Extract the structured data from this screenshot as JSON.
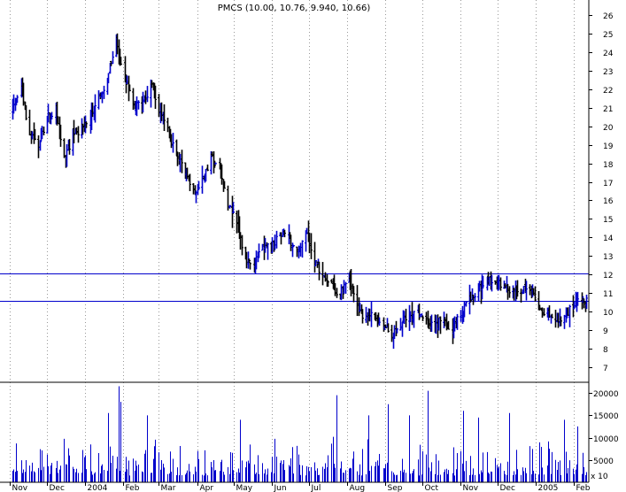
{
  "chart_data": [
    {
      "type": "ohlc",
      "title": "PMCS (10.00, 10.76, 9.940, 10.66)",
      "ylim": [
        6.2,
        26.8
      ],
      "yticks": [
        7,
        8,
        9,
        10,
        11,
        12,
        13,
        14,
        15,
        16,
        17,
        18,
        19,
        20,
        21,
        22,
        23,
        24,
        25,
        26
      ],
      "grid": "vertical dotted at month starts",
      "horizontal_lines": [
        12.05,
        10.58
      ],
      "colors": {
        "up": "#0000cc",
        "down": "#000000",
        "line": "#0000cc",
        "grid": "#999999"
      },
      "months": [
        "Nov",
        "Dec",
        "2004",
        "Feb",
        "Mar",
        "Apr",
        "May",
        "Jun",
        "Jul",
        "Aug",
        "Sep",
        "Oct",
        "Nov",
        "Dec",
        "2005",
        "Feb"
      ],
      "keypoints": [
        [
          "2003-11-03",
          20.8
        ],
        [
          "2003-11-10",
          22.2
        ],
        [
          "2003-11-17",
          19.5
        ],
        [
          "2003-11-24",
          19.0
        ],
        [
          "2003-12-01",
          20.5
        ],
        [
          "2003-12-08",
          20.8
        ],
        [
          "2003-12-15",
          18.2
        ],
        [
          "2003-12-22",
          19.6
        ],
        [
          "2003-12-29",
          19.9
        ],
        [
          "2004-01-05",
          20.5
        ],
        [
          "2004-01-12",
          21.6
        ],
        [
          "2004-01-19",
          22.6
        ],
        [
          "2004-01-26",
          24.6
        ],
        [
          "2004-02-02",
          22.6
        ],
        [
          "2004-02-09",
          21.2
        ],
        [
          "2004-02-16",
          21.0
        ],
        [
          "2004-02-23",
          22.4
        ],
        [
          "2004-03-01",
          21.0
        ],
        [
          "2004-03-08",
          19.8
        ],
        [
          "2004-03-15",
          18.2
        ],
        [
          "2004-03-22",
          17.7
        ],
        [
          "2004-03-29",
          16.4
        ],
        [
          "2004-04-05",
          17.2
        ],
        [
          "2004-04-12",
          18.3
        ],
        [
          "2004-04-19",
          17.6
        ],
        [
          "2004-04-26",
          15.8
        ],
        [
          "2004-05-03",
          14.7
        ],
        [
          "2004-05-10",
          12.9
        ],
        [
          "2004-05-17",
          12.4
        ],
        [
          "2004-05-24",
          13.6
        ],
        [
          "2004-05-31",
          13.4
        ],
        [
          "2004-06-07",
          14.2
        ],
        [
          "2004-06-14",
          14.0
        ],
        [
          "2004-06-21",
          13.2
        ],
        [
          "2004-06-28",
          14.2
        ],
        [
          "2004-07-05",
          12.7
        ],
        [
          "2004-07-12",
          12.1
        ],
        [
          "2004-07-19",
          11.4
        ],
        [
          "2004-07-26",
          10.9
        ],
        [
          "2004-08-02",
          11.8
        ],
        [
          "2004-08-09",
          10.2
        ],
        [
          "2004-08-16",
          9.6
        ],
        [
          "2004-08-23",
          9.9
        ],
        [
          "2004-08-30",
          9.3
        ],
        [
          "2004-09-06",
          8.8
        ],
        [
          "2004-09-13",
          9.3
        ],
        [
          "2004-09-20",
          9.8
        ],
        [
          "2004-09-27",
          9.9
        ],
        [
          "2004-10-04",
          9.5
        ],
        [
          "2004-10-11",
          9.2
        ],
        [
          "2004-10-18",
          9.7
        ],
        [
          "2004-10-25",
          9.0
        ],
        [
          "2004-11-01",
          9.9
        ],
        [
          "2004-11-08",
          10.6
        ],
        [
          "2004-11-15",
          11.2
        ],
        [
          "2004-11-22",
          11.8
        ],
        [
          "2004-11-29",
          11.4
        ],
        [
          "2004-12-06",
          11.6
        ],
        [
          "2004-12-13",
          11.0
        ],
        [
          "2004-12-20",
          11.1
        ],
        [
          "2004-12-27",
          11.2
        ],
        [
          "2005-01-03",
          10.2
        ],
        [
          "2005-01-10",
          9.9
        ],
        [
          "2005-01-17",
          9.3
        ],
        [
          "2005-01-24",
          9.8
        ],
        [
          "2005-01-31",
          10.4
        ],
        [
          "2005-02-07",
          10.5
        ]
      ]
    },
    {
      "type": "bar",
      "title": "",
      "ylim": [
        0,
        22000
      ],
      "yticks": [
        5000,
        10000,
        15000,
        20000
      ],
      "ytick_labels": [
        "5000",
        "10000",
        "15000",
        "20000"
      ],
      "unit_label": "x 10",
      "spikes": [
        [
          "2004-01-28",
          21500
        ],
        [
          "2004-01-30",
          18000
        ],
        [
          "2004-01-20",
          15500
        ],
        [
          "2004-02-20",
          15000
        ],
        [
          "2004-05-06",
          14000
        ],
        [
          "2004-07-23",
          19500
        ],
        [
          "2004-08-18",
          15000
        ],
        [
          "2004-09-03",
          17500
        ],
        [
          "2004-09-20",
          15000
        ],
        [
          "2004-10-05",
          20500
        ],
        [
          "2004-11-03",
          16000
        ],
        [
          "2004-11-15",
          14500
        ],
        [
          "2004-12-10",
          15500
        ],
        [
          "2005-01-24",
          14000
        ],
        [
          "2005-02-04",
          12500
        ]
      ]
    }
  ]
}
